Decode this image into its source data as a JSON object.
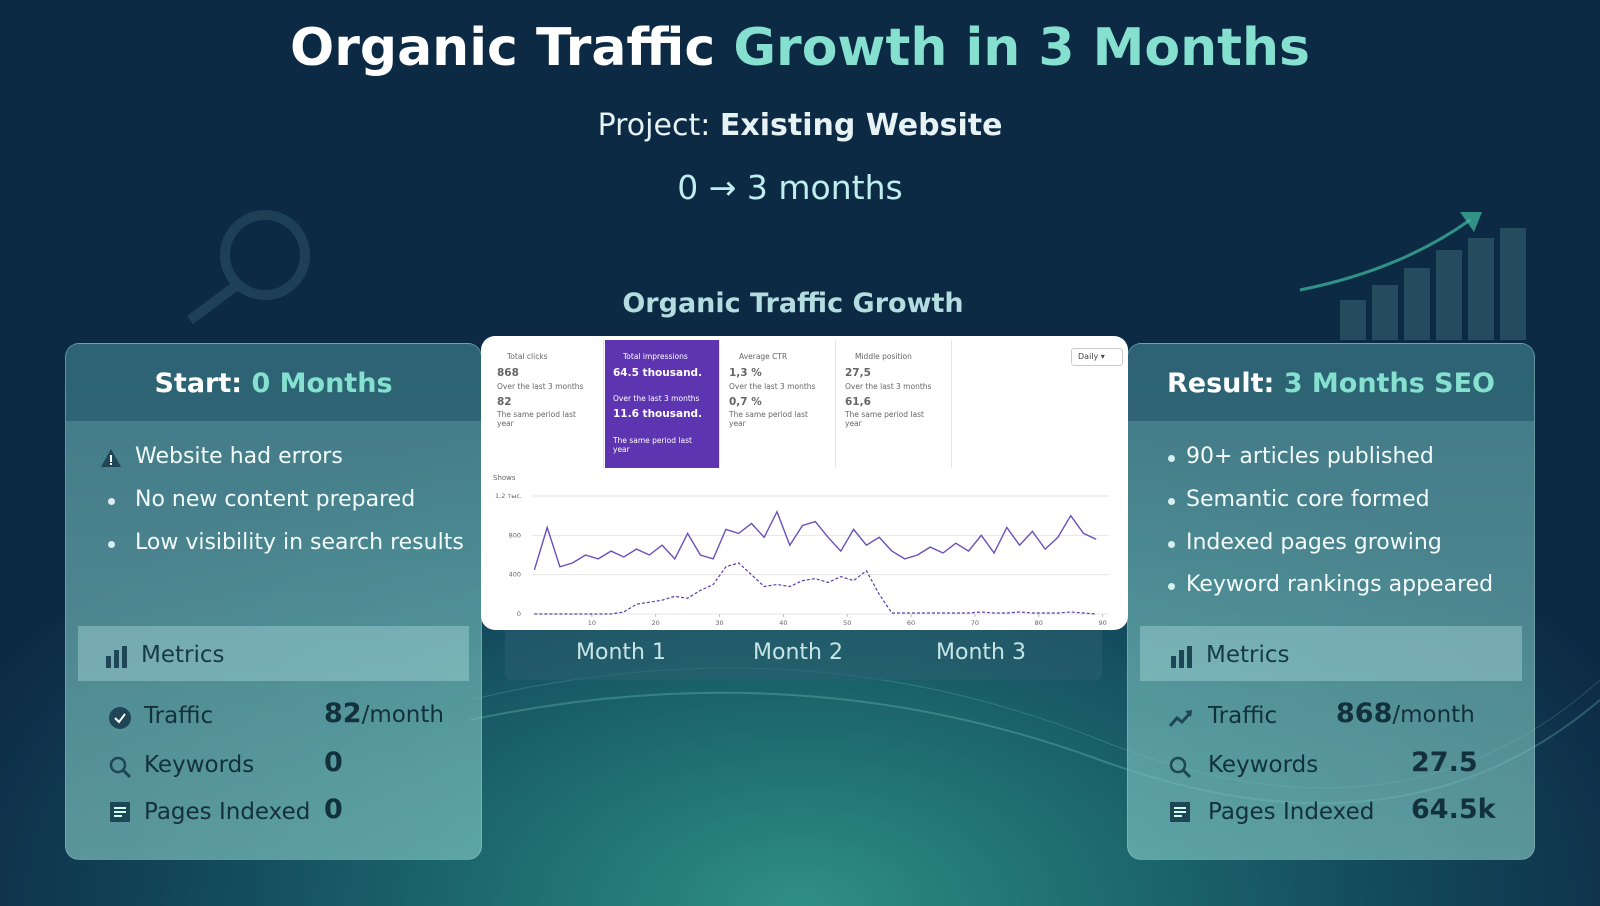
{
  "header": {
    "title_main": "Organic Traffic",
    "title_accent": "Growth in 3 Months",
    "project_label": "Project:",
    "project_name": "Existing Website",
    "timeline": "0 → 3",
    "timeline_unit": "months"
  },
  "center": {
    "title": "Organic Traffic Growth",
    "months": [
      "Month 1",
      "Month 2",
      "Month 3"
    ]
  },
  "left_panel": {
    "title_label": "Start:",
    "title_value": "0 Months",
    "items": [
      "Website had errors",
      "No new content prepared",
      "Low visibility in search results"
    ],
    "metrics_title": "Metrics",
    "metrics": [
      {
        "label": "Traffic",
        "value": "82",
        "unit": "/month"
      },
      {
        "label": "Keywords",
        "value": "0"
      },
      {
        "label": "Pages Indexed",
        "value": "0"
      }
    ]
  },
  "right_panel": {
    "title_label": "Result:",
    "title_value": "3 Months SEO",
    "items": [
      "90+ articles published",
      "Semantic core formed",
      "Indexed pages growing",
      "Keyword rankings appeared"
    ],
    "metrics_title": "Metrics",
    "metrics": [
      {
        "label": "Traffic",
        "value": "868",
        "unit": "/month"
      },
      {
        "label": "Keywords",
        "value": "27.5"
      },
      {
        "label": "Pages Indexed",
        "value": "64.5k"
      }
    ]
  },
  "report": {
    "period": "Daily",
    "cards": [
      {
        "label": "Total clicks",
        "value": "868",
        "value_note": "Over the last 3 months",
        "previous": "82",
        "previous_note": "The same period last year"
      },
      {
        "label": "Total impressions",
        "value": "64.5 thousand.",
        "value_note": "Over the last 3 months",
        "previous": "11.6 thousand.",
        "previous_note": "The same period last year"
      },
      {
        "label": "Average CTR",
        "value": "1,3 %",
        "value_note": "Over the last 3 months",
        "previous": "0,7 %",
        "previous_note": "The same period last year"
      },
      {
        "label": "Middle position",
        "value": "27,5",
        "value_note": "Over the last 3 months",
        "previous": "61,6",
        "previous_note": "The same period last year"
      }
    ]
  },
  "chart_data": {
    "type": "line",
    "ylabel": "Shows",
    "x": [
      1,
      3,
      5,
      7,
      9,
      11,
      13,
      15,
      17,
      19,
      21,
      23,
      25,
      27,
      29,
      31,
      33,
      35,
      37,
      39,
      41,
      43,
      45,
      47,
      49,
      51,
      53,
      55,
      57,
      59,
      61,
      63,
      65,
      67,
      69,
      71,
      73,
      75,
      77,
      79,
      81,
      83,
      85,
      87,
      89
    ],
    "series": [
      {
        "color": "#6b4fbb",
        "dash": false,
        "values": [
          450,
          880,
          480,
          520,
          600,
          560,
          640,
          580,
          660,
          600,
          700,
          560,
          820,
          600,
          560,
          860,
          820,
          920,
          780,
          1040,
          700,
          900,
          940,
          780,
          640,
          860,
          700,
          780,
          640,
          560,
          600,
          680,
          620,
          720,
          640,
          800,
          620,
          880,
          700,
          840,
          660,
          780,
          1000,
          820,
          760
        ]
      },
      {
        "color": "#5b3fa8",
        "dash": true,
        "values": [
          0,
          0,
          0,
          0,
          0,
          0,
          0,
          20,
          100,
          120,
          140,
          180,
          160,
          240,
          300,
          480,
          520,
          400,
          280,
          300,
          280,
          340,
          360,
          320,
          380,
          340,
          440,
          200,
          10,
          10,
          10,
          10,
          10,
          10,
          10,
          20,
          10,
          10,
          20,
          10,
          10,
          10,
          20,
          10,
          0
        ]
      }
    ],
    "xlim": [
      0,
      91
    ],
    "ylim": [
      0,
      1200
    ],
    "xticks": [
      10,
      20,
      30,
      40,
      50,
      60,
      70,
      80,
      90
    ],
    "yticks": [
      0,
      400,
      800,
      {
        "value": 1200,
        "label": "1,2 тыс."
      }
    ],
    "grid": true
  }
}
